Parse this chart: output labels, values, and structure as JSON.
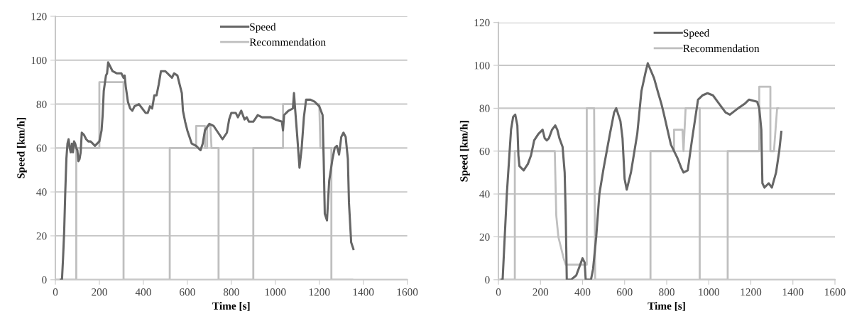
{
  "chart_data": [
    {
      "type": "line",
      "xlabel": "Time [s]",
      "ylabel": "Speed [km/h]",
      "xlim": [
        0,
        1600
      ],
      "ylim": [
        0,
        120
      ],
      "xticks": [
        0,
        200,
        400,
        600,
        800,
        1000,
        1200,
        1400,
        1600
      ],
      "yticks": [
        0,
        20,
        40,
        60,
        80,
        100,
        120
      ],
      "grid": "y",
      "legend": "top",
      "marker": "none",
      "line_style": "solid",
      "series": [
        {
          "name": "Speed",
          "color": "#666666",
          "x": [
            25,
            30,
            35,
            40,
            45,
            50,
            55,
            60,
            65,
            70,
            75,
            80,
            85,
            90,
            95,
            100,
            105,
            110,
            115,
            120,
            130,
            140,
            150,
            160,
            170,
            180,
            190,
            200,
            210,
            215,
            220,
            230,
            235,
            240,
            250,
            260,
            280,
            300,
            310,
            315,
            320,
            330,
            340,
            350,
            360,
            380,
            395,
            410,
            420,
            430,
            440,
            450,
            460,
            470,
            480,
            500,
            520,
            530,
            540,
            555,
            565,
            575,
            580,
            590,
            600,
            610,
            620,
            640,
            660,
            670,
            680,
            700,
            720,
            740,
            760,
            780,
            790,
            800,
            820,
            830,
            845,
            860,
            870,
            880,
            900,
            920,
            940,
            960,
            980,
            1000,
            1030,
            1035,
            1040,
            1050,
            1060,
            1080,
            1085,
            1090,
            1100,
            1110,
            1120,
            1130,
            1140,
            1160,
            1180,
            1190,
            1200,
            1215,
            1220,
            1225,
            1235,
            1245,
            1260,
            1270,
            1280,
            1290,
            1300,
            1310,
            1320,
            1330,
            1335,
            1345,
            1355
          ],
          "values": [
            0,
            0,
            10,
            22,
            40,
            55,
            62,
            64,
            60,
            58,
            62,
            58,
            63,
            62,
            60,
            59,
            54,
            55,
            58,
            67,
            66,
            64,
            63,
            63,
            62,
            61,
            62,
            63,
            68,
            75,
            86,
            93,
            94,
            99,
            97,
            95,
            94,
            94,
            92,
            93,
            88,
            81,
            78,
            77,
            79,
            80,
            78,
            76,
            76,
            79,
            78,
            84,
            84,
            89,
            95,
            95,
            93,
            92,
            94,
            93,
            89,
            85,
            77,
            72,
            68,
            65,
            62,
            61,
            59,
            62,
            68,
            71,
            70,
            67,
            64,
            67,
            73,
            76,
            76,
            74,
            77,
            73,
            74,
            72,
            72,
            75,
            74,
            74,
            74,
            73,
            72,
            68,
            75,
            76,
            77,
            78,
            85,
            78,
            65,
            51,
            60,
            74,
            82,
            82,
            81,
            80,
            79,
            75,
            55,
            30,
            27,
            45,
            55,
            60,
            61,
            57,
            65,
            67,
            65,
            55,
            35,
            17,
            14
          ]
        },
        {
          "name": "Recommendation",
          "color": "#bfbfbf",
          "x": [
            0,
            95,
            95,
            200,
            200,
            310,
            310,
            520,
            520,
            640,
            640,
            680,
            680,
            690,
            690,
            705,
            710,
            742,
            742,
            900,
            900,
            1035,
            1035,
            1200,
            1205,
            1255,
            1255,
            1350
          ],
          "values": [
            0,
            0,
            60,
            60,
            90,
            90,
            0,
            0,
            60,
            60,
            70,
            70,
            60,
            60,
            70,
            70,
            60,
            60,
            0,
            0,
            60,
            60,
            80,
            80,
            60,
            60,
            0,
            0
          ]
        }
      ]
    },
    {
      "type": "line",
      "xlabel": "Time [s]",
      "ylabel": "Speed [km/h]",
      "xlim": [
        0,
        1600
      ],
      "ylim": [
        0,
        120
      ],
      "xticks": [
        0,
        200,
        400,
        600,
        800,
        1000,
        1200,
        1400,
        1600
      ],
      "yticks": [
        0,
        20,
        40,
        60,
        80,
        100,
        120
      ],
      "grid": "y",
      "legend": "top",
      "marker": "none",
      "line_style": "solid",
      "series": [
        {
          "name": "Speed",
          "color": "#666666",
          "x": [
            15,
            20,
            25,
            30,
            40,
            50,
            60,
            70,
            80,
            90,
            95,
            100,
            120,
            140,
            155,
            170,
            190,
            210,
            220,
            230,
            240,
            255,
            270,
            280,
            290,
            305,
            315,
            320,
            325,
            345,
            370,
            385,
            400,
            410,
            415,
            440,
            450,
            465,
            480,
            500,
            530,
            550,
            560,
            580,
            590,
            600,
            610,
            630,
            660,
            680,
            700,
            710,
            740,
            760,
            775,
            785,
            820,
            850,
            870,
            880,
            900,
            920,
            949,
            970,
            994,
            1020,
            1050,
            1080,
            1100,
            1140,
            1170,
            1191,
            1230,
            1240,
            1250,
            1255,
            1265,
            1285,
            1300,
            1320,
            1335,
            1345
          ],
          "values": [
            0,
            0,
            10,
            20,
            40,
            55,
            70,
            76,
            77,
            72,
            58,
            53,
            51,
            54,
            58,
            65,
            68,
            70,
            66,
            65,
            66,
            70,
            72,
            70,
            66,
            62,
            50,
            30,
            0,
            0,
            2,
            6,
            10,
            8,
            0,
            0,
            5,
            20,
            40,
            52,
            68,
            78,
            80,
            74,
            66,
            47,
            42,
            50,
            68,
            88,
            97,
            101,
            94,
            87,
            82,
            78,
            63,
            57,
            52,
            50,
            51,
            65,
            84,
            86,
            87,
            86,
            82,
            78,
            77,
            80,
            82,
            84,
            83,
            80,
            70,
            45,
            43,
            45,
            43,
            50,
            60,
            69
          ]
        },
        {
          "name": "Recommendation",
          "color": "#bfbfbf",
          "x": [
            0,
            78,
            78,
            268,
            275,
            285,
            310,
            320,
            420,
            420,
            455,
            460,
            723,
            723,
            835,
            835,
            875,
            880,
            890,
            957,
            957,
            1090,
            1090,
            1240,
            1240,
            1293,
            1293,
            1310,
            1325,
            1330
          ],
          "values": [
            0,
            0,
            60,
            60,
            30,
            20,
            10,
            7,
            7,
            80,
            80,
            0,
            0,
            60,
            60,
            70,
            70,
            60,
            80,
            80,
            0,
            0,
            60,
            60,
            90,
            90,
            60,
            60,
            80,
            80
          ]
        }
      ]
    }
  ]
}
